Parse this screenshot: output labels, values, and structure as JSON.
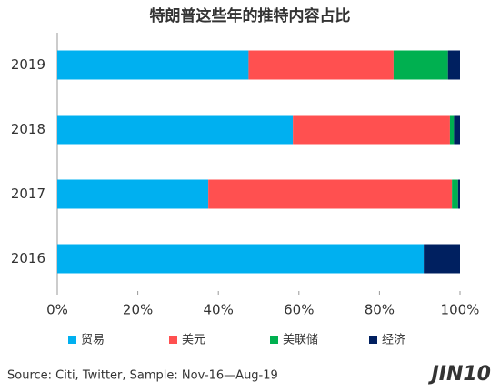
{
  "chart_data": {
    "type": "stacked-barh",
    "title": "特朗普这些年的推特内容占比",
    "categories": [
      "2019",
      "2018",
      "2017",
      "2016"
    ],
    "series": [
      {
        "name": "贸易",
        "color": "#00b0f0",
        "values": [
          47.5,
          58.5,
          37.5,
          91
        ]
      },
      {
        "name": "美元",
        "color": "#ff5050",
        "values": [
          36,
          39,
          60.5,
          0
        ]
      },
      {
        "name": "美联储",
        "color": "#00b050",
        "values": [
          13.5,
          1,
          1.5,
          0
        ]
      },
      {
        "name": "经济",
        "color": "#002060",
        "values": [
          3,
          1.5,
          0.5,
          9
        ]
      }
    ],
    "xlim": [
      0,
      100
    ],
    "xticks": [
      {
        "value": 0,
        "label": "0%"
      },
      {
        "value": 20,
        "label": "20%"
      },
      {
        "value": 40,
        "label": "40%"
      },
      {
        "value": 60,
        "label": "60%"
      },
      {
        "value": 80,
        "label": "80%"
      },
      {
        "value": 100,
        "label": "100%"
      }
    ],
    "source": "Source: Citi, Twitter, Sample: Nov-16—Aug-19"
  },
  "logo": "JIN10"
}
